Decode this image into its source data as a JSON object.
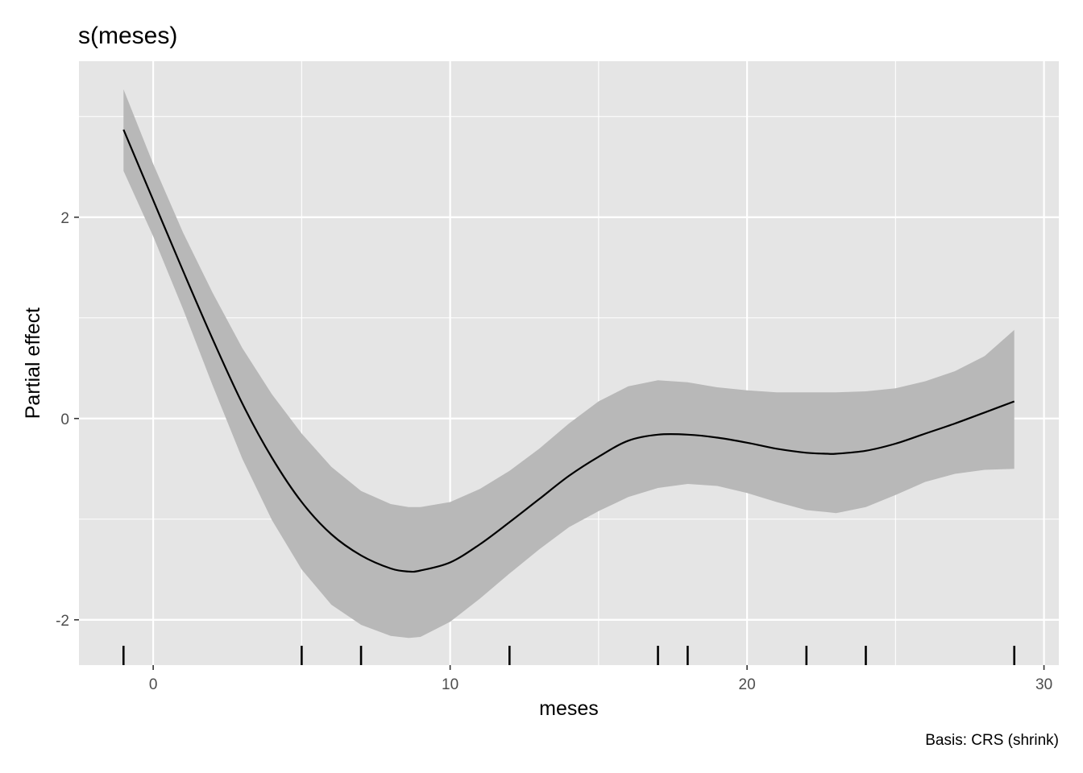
{
  "chart_data": {
    "type": "line",
    "title": "s(meses)",
    "xlabel": "meses",
    "ylabel": "Partial effect",
    "caption": "Basis: CRS (shrink)",
    "xlim": [
      -2.5,
      30.5
    ],
    "ylim": [
      -2.45,
      3.55
    ],
    "x_ticks": [
      0,
      10,
      20,
      30
    ],
    "x_tick_labels": [
      "0",
      "10",
      "20",
      "30"
    ],
    "y_ticks": [
      -2,
      0,
      2
    ],
    "y_tick_labels": [
      "-2",
      "0",
      "2"
    ],
    "x_minor": [
      5,
      15,
      25
    ],
    "y_minor": [
      -1,
      1,
      3
    ],
    "grid": true,
    "series": [
      {
        "x": [
          -1,
          0,
          1,
          2,
          3,
          4,
          5,
          6,
          7,
          8,
          8.6,
          9,
          10,
          11,
          12,
          13,
          14,
          15,
          16,
          17,
          18,
          19,
          20,
          21,
          22,
          22.7,
          23,
          24,
          25,
          26,
          27,
          28,
          29
        ],
        "y": [
          2.87,
          2.17,
          1.47,
          0.79,
          0.15,
          -0.39,
          -0.83,
          -1.15,
          -1.36,
          -1.49,
          -1.52,
          -1.51,
          -1.43,
          -1.25,
          -1.03,
          -0.8,
          -0.57,
          -0.38,
          -0.22,
          -0.16,
          -0.16,
          -0.19,
          -0.24,
          -0.3,
          -0.34,
          -0.35,
          -0.35,
          -0.32,
          -0.25,
          -0.15,
          -0.05,
          0.06,
          0.17
        ],
        "upper": [
          3.27,
          2.53,
          1.85,
          1.25,
          0.7,
          0.24,
          -0.15,
          -0.48,
          -0.72,
          -0.85,
          -0.88,
          -0.88,
          -0.83,
          -0.7,
          -0.52,
          -0.3,
          -0.05,
          0.17,
          0.32,
          0.38,
          0.36,
          0.31,
          0.28,
          0.26,
          0.26,
          0.26,
          0.26,
          0.27,
          0.3,
          0.37,
          0.47,
          0.62,
          0.88
        ],
        "lower": [
          2.46,
          1.81,
          1.09,
          0.33,
          -0.4,
          -1.01,
          -1.5,
          -1.85,
          -2.05,
          -2.16,
          -2.18,
          -2.17,
          -2.02,
          -1.79,
          -1.54,
          -1.3,
          -1.08,
          -0.92,
          -0.78,
          -0.69,
          -0.65,
          -0.67,
          -0.74,
          -0.83,
          -0.91,
          -0.93,
          -0.94,
          -0.88,
          -0.76,
          -0.63,
          -0.55,
          -0.51,
          -0.5
        ]
      }
    ],
    "rug": [
      -1,
      5,
      7,
      12,
      17,
      18,
      22,
      24,
      29
    ],
    "colors": {
      "panel": "#e5e5e5",
      "grid": "#ffffff",
      "band": "#b8b8b8",
      "line": "#000000",
      "tick_text": "#4d4d4d"
    }
  }
}
